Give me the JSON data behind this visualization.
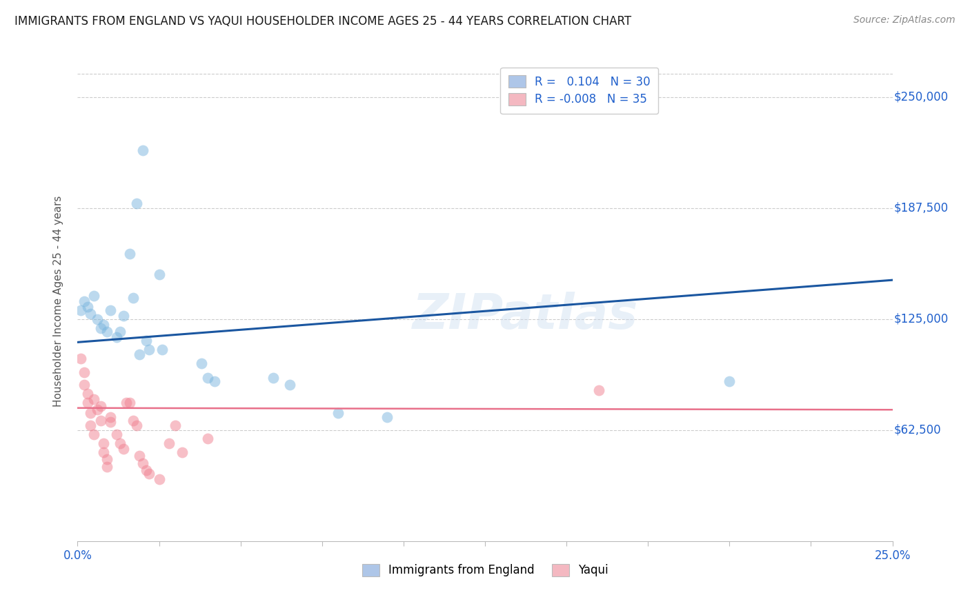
{
  "title": "IMMIGRANTS FROM ENGLAND VS YAQUI HOUSEHOLDER INCOME AGES 25 - 44 YEARS CORRELATION CHART",
  "source": "Source: ZipAtlas.com",
  "ylabel": "Householder Income Ages 25 - 44 years",
  "ytick_labels": [
    "$62,500",
    "$125,000",
    "$187,500",
    "$250,000"
  ],
  "ytick_values": [
    62500,
    125000,
    187500,
    250000
  ],
  "ymin": 0,
  "ymax": 270000,
  "xmin": 0.0,
  "xmax": 0.25,
  "watermark": "ZIPatlas",
  "legend1_label": "Immigrants from England",
  "legend1_R": "0.104",
  "legend1_N": "30",
  "legend1_patch_color": "#aec6e8",
  "legend2_label": "Yaqui",
  "legend2_R": "-0.008",
  "legend2_N": "35",
  "legend2_patch_color": "#f4b8c1",
  "england_color": "#7ab5de",
  "yaqui_color": "#f08090",
  "england_line_color": "#1a56a0",
  "yaqui_line_color": "#e8708a",
  "england_scatter": [
    [
      0.001,
      130000
    ],
    [
      0.002,
      135000
    ],
    [
      0.003,
      132000
    ],
    [
      0.004,
      128000
    ],
    [
      0.005,
      138000
    ],
    [
      0.006,
      125000
    ],
    [
      0.007,
      120000
    ],
    [
      0.008,
      122000
    ],
    [
      0.009,
      118000
    ],
    [
      0.01,
      130000
    ],
    [
      0.012,
      115000
    ],
    [
      0.013,
      118000
    ],
    [
      0.014,
      127000
    ],
    [
      0.016,
      162000
    ],
    [
      0.018,
      190000
    ],
    [
      0.017,
      137000
    ],
    [
      0.02,
      220000
    ],
    [
      0.019,
      105000
    ],
    [
      0.021,
      113000
    ],
    [
      0.022,
      108000
    ],
    [
      0.025,
      150000
    ],
    [
      0.026,
      108000
    ],
    [
      0.038,
      100000
    ],
    [
      0.04,
      92000
    ],
    [
      0.042,
      90000
    ],
    [
      0.06,
      92000
    ],
    [
      0.065,
      88000
    ],
    [
      0.08,
      72000
    ],
    [
      0.095,
      70000
    ],
    [
      0.2,
      90000
    ]
  ],
  "yaqui_scatter": [
    [
      0.001,
      103000
    ],
    [
      0.002,
      95000
    ],
    [
      0.002,
      88000
    ],
    [
      0.003,
      83000
    ],
    [
      0.003,
      78000
    ],
    [
      0.004,
      72000
    ],
    [
      0.004,
      65000
    ],
    [
      0.005,
      60000
    ],
    [
      0.005,
      80000
    ],
    [
      0.006,
      74000
    ],
    [
      0.007,
      68000
    ],
    [
      0.007,
      76000
    ],
    [
      0.008,
      55000
    ],
    [
      0.008,
      50000
    ],
    [
      0.009,
      46000
    ],
    [
      0.009,
      42000
    ],
    [
      0.01,
      67000
    ],
    [
      0.01,
      70000
    ],
    [
      0.012,
      60000
    ],
    [
      0.013,
      55000
    ],
    [
      0.014,
      52000
    ],
    [
      0.015,
      78000
    ],
    [
      0.016,
      78000
    ],
    [
      0.017,
      68000
    ],
    [
      0.018,
      65000
    ],
    [
      0.019,
      48000
    ],
    [
      0.02,
      44000
    ],
    [
      0.021,
      40000
    ],
    [
      0.022,
      38000
    ],
    [
      0.025,
      35000
    ],
    [
      0.028,
      55000
    ],
    [
      0.03,
      65000
    ],
    [
      0.032,
      50000
    ],
    [
      0.16,
      85000
    ],
    [
      0.04,
      58000
    ]
  ],
  "england_trend_x": [
    0.0,
    0.25
  ],
  "england_trend_y": [
    112000,
    147000
  ],
  "yaqui_trend_x": [
    0.0,
    0.25
  ],
  "yaqui_trend_y": [
    75000,
    74000
  ],
  "background_color": "#ffffff",
  "grid_color": "#cccccc",
  "title_color": "#1a1a1a",
  "right_tick_color": "#2060cc",
  "marker_size": 130,
  "marker_alpha": 0.5
}
